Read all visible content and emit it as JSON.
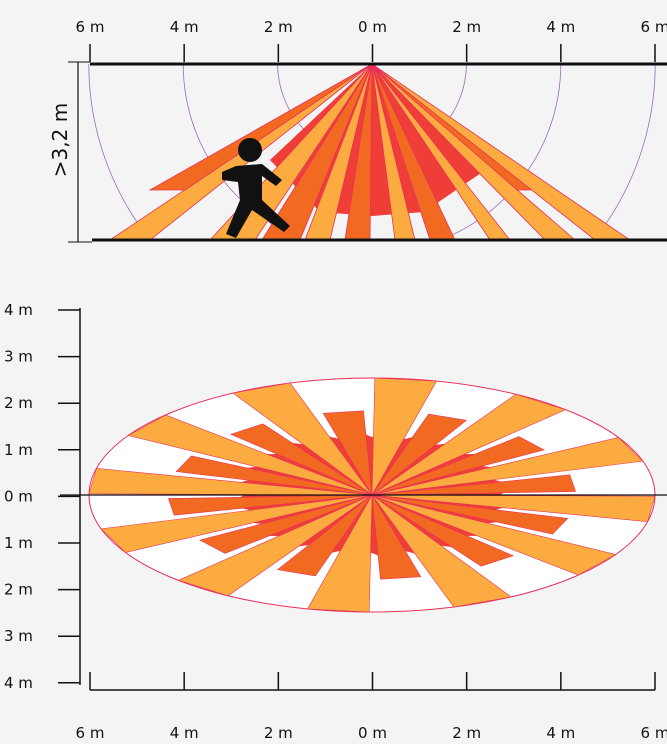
{
  "side_view": {
    "x_labels": [
      "6 m",
      "4 m",
      "2 m",
      "0 m",
      "2 m",
      "4 m",
      "6 m"
    ],
    "height_label": ">3,2 m"
  },
  "top_view": {
    "y_labels": [
      "4 m",
      "3 m",
      "2 m",
      "1 m",
      "0 m",
      "1 m",
      "2 m",
      "3 m",
      "4 m"
    ],
    "x_labels": [
      "6 m",
      "4 m",
      "2 m",
      "0 m",
      "2 m",
      "4 m",
      "6 m"
    ]
  }
}
